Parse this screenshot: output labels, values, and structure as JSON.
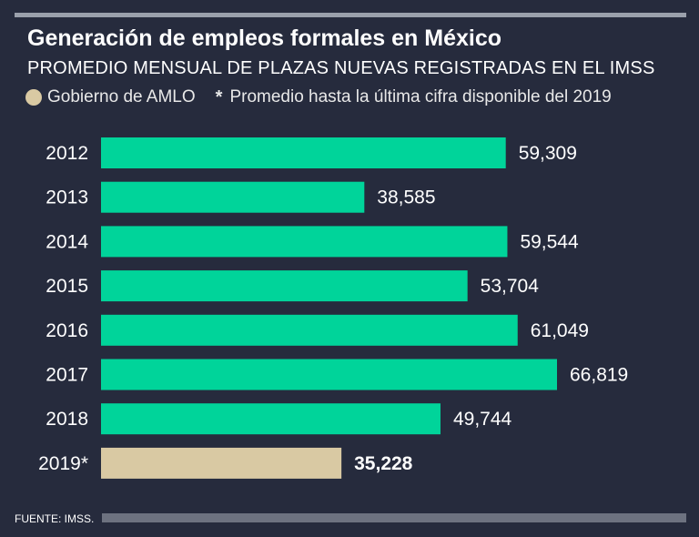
{
  "title": "Generación de empleos formales en México",
  "subtitle": "PROMEDIO MENSUAL DE PLAZAS NUEVAS REGISTRADAS EN EL IMSS",
  "legend": {
    "amlo_label": "Gobierno de AMLO",
    "asterisk": "*",
    "note_label": "Promedio hasta la última cifra disponible del 2019"
  },
  "source": "FUENTE: IMSS.",
  "colors": {
    "background": "#262b3d",
    "bar_default": "#00d49a",
    "bar_amlo": "#d9c9a3",
    "text": "#ffffff"
  },
  "chart_data": {
    "type": "bar",
    "orientation": "horizontal",
    "title": "Generación de empleos formales en México",
    "subtitle": "PROMEDIO MENSUAL DE PLAZAS NUEVAS REGISTRADAS EN EL IMSS",
    "categories": [
      "2012",
      "2013",
      "2014",
      "2015",
      "2016",
      "2017",
      "2018",
      "2019*"
    ],
    "values": [
      59309,
      38585,
      59544,
      53704,
      61049,
      66819,
      49744,
      35228
    ],
    "value_labels": [
      "59,309",
      "38,585",
      "59,544",
      "53,704",
      "61,049",
      "66,819",
      "49,744",
      "35,228"
    ],
    "highlight": [
      false,
      false,
      false,
      false,
      false,
      false,
      false,
      true
    ],
    "xlim": [
      0,
      66819
    ],
    "xlabel": "",
    "ylabel": "",
    "grid": false
  }
}
